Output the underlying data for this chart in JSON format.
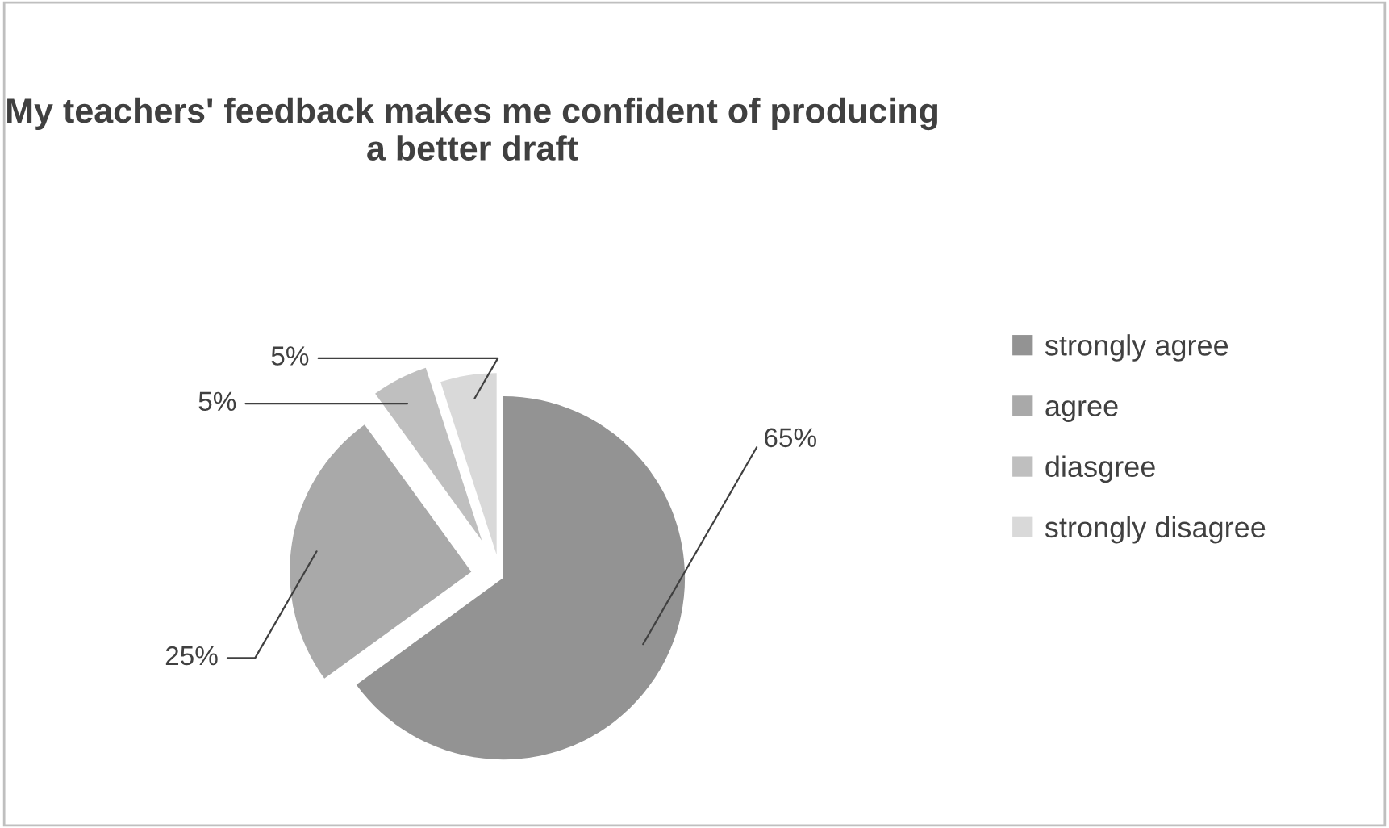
{
  "chart_data": {
    "type": "pie",
    "title": "My teachers' feedback makes me confident of producing a better draft",
    "categories": [
      "strongly agree",
      "agree",
      "diasgree",
      "strongly disagree"
    ],
    "values": [
      65,
      25,
      5,
      5
    ],
    "colors": [
      "#939393",
      "#a9a9a9",
      "#bfbfbf",
      "#d9d9d9"
    ],
    "value_labels": [
      "65%",
      "25%",
      "5%",
      "5%"
    ],
    "legend": "right"
  }
}
